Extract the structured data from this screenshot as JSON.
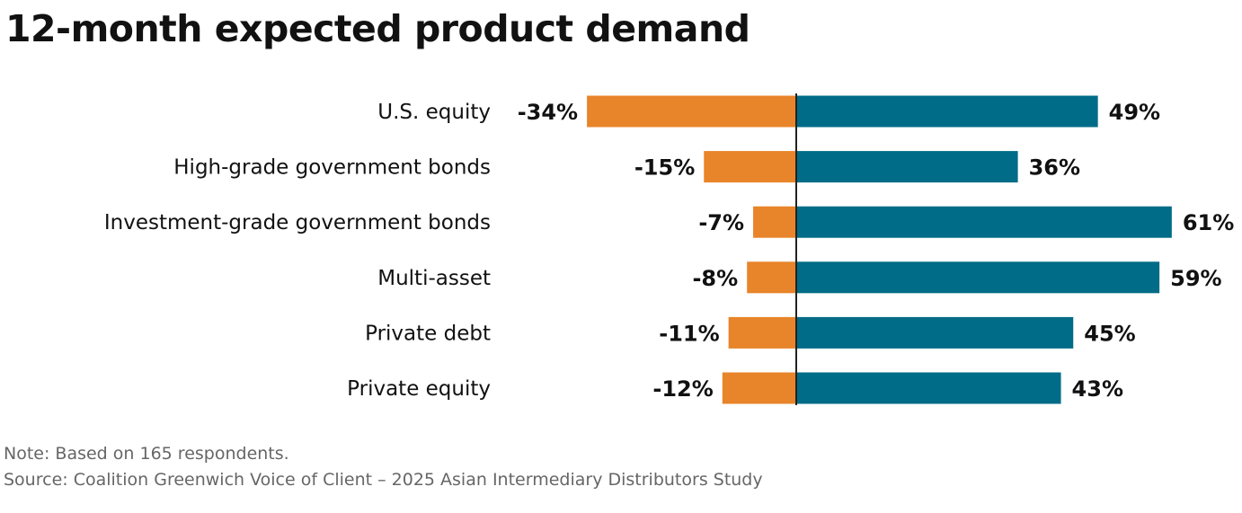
{
  "chart_data": {
    "type": "bar",
    "orientation": "horizontal-diverging",
    "title": "12-month expected product demand",
    "categories": [
      "U.S. equity",
      "High-grade government bonds",
      "Investment-grade government bonds",
      "Multi-asset",
      "Private debt",
      "Private equity"
    ],
    "series": [
      {
        "values": [
          -34,
          -15,
          -7,
          -8,
          -11,
          -12
        ],
        "labels": [
          "-34%",
          "-15%",
          "-7%",
          "-8%",
          "-11%",
          "-12%"
        ],
        "color": "#E8842A"
      },
      {
        "values": [
          49,
          36,
          61,
          59,
          45,
          43
        ],
        "labels": [
          "49%",
          "36%",
          "61%",
          "59%",
          "45%",
          "43%"
        ],
        "color": "#006C87"
      }
    ],
    "grid": false,
    "legend": "none"
  },
  "footer": {
    "note": "Note: Based on 165 respondents.",
    "source": "Source: Coalition Greenwich Voice of Client – 2025 Asian Intermediary Distributors Study"
  }
}
